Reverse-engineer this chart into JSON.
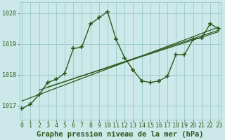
{
  "title": "Graphe pression niveau de la mer (hPa)",
  "bg_color": "#cce8e8",
  "line_color": "#2d5a1e",
  "grid_color": "#9ecece",
  "x_values": [
    0,
    1,
    2,
    3,
    4,
    5,
    6,
    7,
    8,
    9,
    10,
    11,
    12,
    13,
    14,
    15,
    16,
    17,
    18,
    19,
    20,
    21,
    22,
    23
  ],
  "y_main": [
    1016.9,
    1017.05,
    1017.35,
    1017.75,
    1017.85,
    1018.05,
    1018.85,
    1018.9,
    1019.65,
    1019.85,
    1020.05,
    1019.15,
    1018.55,
    1018.15,
    1017.8,
    1017.75,
    1017.8,
    1017.95,
    1018.65,
    1018.65,
    1019.15,
    1019.2,
    1019.65,
    1019.5
  ],
  "trend1_x": [
    0,
    23
  ],
  "trend1_y": [
    1017.15,
    1019.55
  ],
  "trend2_x": [
    2,
    23
  ],
  "trend2_y": [
    1017.5,
    1019.45
  ],
  "trend3_x": [
    3,
    23
  ],
  "trend3_y": [
    1017.6,
    1019.4
  ],
  "ylim": [
    1016.55,
    1020.35
  ],
  "xlim": [
    -0.3,
    23.3
  ],
  "yticks": [
    1017,
    1018,
    1019,
    1020
  ],
  "xticks": [
    0,
    1,
    2,
    3,
    4,
    5,
    6,
    7,
    8,
    9,
    10,
    11,
    12,
    13,
    14,
    15,
    16,
    17,
    18,
    19,
    20,
    21,
    22,
    23
  ],
  "tick_fontsize": 6.0,
  "title_fontsize": 7.5,
  "markersize": 4,
  "linewidth": 1.0,
  "trend_linewidth": 0.9
}
